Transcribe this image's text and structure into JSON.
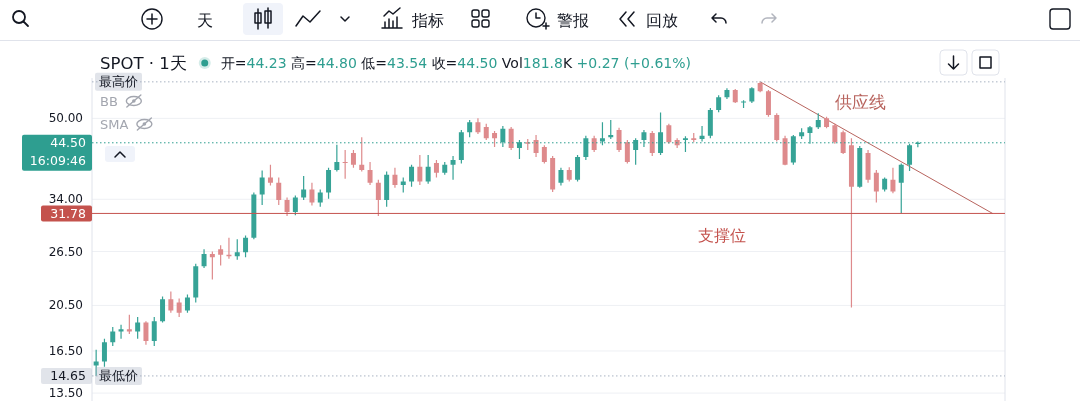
{
  "chart_data": {
    "type": "candlestick",
    "title": "SPOT · 1天",
    "subtitle": "开=44.23 高=44.80 低=43.54 收=44.50 Vol181.8K +0.27 (+0.61%)",
    "categories": [
      null,
      null,
      null,
      null,
      null,
      null,
      null,
      null,
      null,
      null,
      null,
      null,
      null,
      null,
      null,
      null,
      null,
      null,
      null,
      null,
      null,
      null,
      null,
      null,
      null,
      null,
      null,
      null,
      null,
      null,
      null,
      null,
      null,
      null,
      null,
      null,
      null,
      null,
      null,
      null,
      null,
      null,
      null,
      null,
      null,
      null,
      null,
      null,
      null,
      null,
      null,
      null,
      null,
      null,
      null,
      null,
      null,
      null,
      null,
      null,
      null,
      null,
      null,
      null,
      null,
      null,
      null,
      null,
      null,
      null,
      null,
      null,
      null,
      null,
      null,
      null,
      null,
      null,
      null,
      null,
      null,
      null,
      null,
      null,
      null,
      null,
      null,
      null,
      null,
      null,
      null,
      null,
      null,
      null,
      null,
      null,
      null,
      null,
      null,
      null,
      null,
      null,
      null,
      null,
      null,
      null,
      null,
      null,
      null,
      null
    ],
    "ohlc": [
      [
        15.4,
        16.6,
        14.65,
        15.7
      ],
      [
        15.7,
        17.5,
        15.3,
        17.2
      ],
      [
        17.2,
        18.5,
        16.9,
        18.1
      ],
      [
        18.1,
        18.7,
        17.5,
        18.3
      ],
      [
        18.3,
        19.6,
        17.9,
        18.1
      ],
      [
        18.1,
        19.4,
        17.5,
        18.9
      ],
      [
        18.9,
        19.0,
        17.0,
        17.3
      ],
      [
        17.3,
        19.4,
        16.9,
        19.0
      ],
      [
        19.0,
        21.4,
        18.9,
        21.1
      ],
      [
        21.1,
        21.9,
        19.8,
        20.0
      ],
      [
        20.8,
        21.2,
        19.4,
        19.8
      ],
      [
        20.0,
        21.6,
        19.8,
        21.3
      ],
      [
        21.3,
        25.0,
        20.8,
        24.7
      ],
      [
        24.7,
        26.8,
        24.5,
        26.2
      ],
      [
        26.2,
        26.5,
        23.2,
        25.8
      ],
      [
        26.8,
        27.3,
        24.8,
        26.1
      ],
      [
        26.1,
        28.3,
        25.6,
        25.9
      ],
      [
        25.9,
        28.1,
        25.5,
        26.4
      ],
      [
        26.4,
        28.6,
        25.8,
        28.3
      ],
      [
        28.3,
        35.1,
        28.1,
        34.8
      ],
      [
        34.8,
        39.0,
        33.1,
        37.7
      ],
      [
        37.7,
        40.1,
        36.3,
        36.8
      ],
      [
        36.8,
        37.7,
        33.1,
        33.9
      ],
      [
        33.9,
        34.3,
        31.4,
        32.0
      ],
      [
        32.0,
        34.6,
        31.5,
        34.3
      ],
      [
        34.3,
        38.0,
        33.9,
        35.6
      ],
      [
        35.6,
        36.8,
        33.0,
        33.5
      ],
      [
        33.5,
        35.6,
        32.8,
        35.1
      ],
      [
        35.1,
        39.5,
        34.1,
        39.1
      ],
      [
        39.1,
        44.1,
        38.8,
        40.6
      ],
      [
        40.6,
        43.0,
        37.5,
        40.4
      ],
      [
        42.4,
        43.0,
        39.5,
        40.1
      ],
      [
        40.1,
        45.7,
        38.8,
        39.1
      ],
      [
        39.1,
        40.6,
        36.4,
        36.8
      ],
      [
        36.8,
        37.3,
        31.4,
        33.9
      ],
      [
        33.9,
        38.8,
        32.8,
        38.2
      ],
      [
        38.2,
        39.5,
        35.9,
        36.4
      ],
      [
        36.4,
        37.7,
        35.1,
        37.0
      ],
      [
        37.0,
        40.1,
        36.1,
        39.7
      ],
      [
        39.7,
        42.0,
        36.4,
        37.0
      ],
      [
        37.0,
        42.0,
        36.6,
        39.7
      ],
      [
        40.4,
        41.0,
        37.7,
        38.6
      ],
      [
        38.6,
        40.6,
        38.2,
        40.1
      ],
      [
        40.1,
        41.8,
        37.3,
        41.0
      ],
      [
        41.0,
        47.3,
        40.3,
        46.8
      ],
      [
        46.8,
        49.6,
        45.7,
        49.1
      ],
      [
        49.1,
        50.0,
        46.4,
        46.8
      ],
      [
        48.0,
        48.7,
        45.1,
        45.5
      ],
      [
        46.6,
        47.1,
        43.6,
        45.5
      ],
      [
        44.6,
        48.2,
        43.6,
        47.6
      ],
      [
        47.6,
        48.0,
        43.0,
        43.4
      ],
      [
        43.4,
        45.1,
        41.2,
        44.6
      ],
      [
        44.6,
        45.3,
        43.0,
        44.3
      ],
      [
        45.1,
        46.2,
        41.6,
        42.4
      ],
      [
        43.6,
        44.0,
        40.3,
        40.6
      ],
      [
        41.4,
        41.8,
        35.2,
        35.6
      ],
      [
        36.8,
        39.5,
        36.3,
        39.1
      ],
      [
        39.1,
        39.6,
        37.0,
        37.3
      ],
      [
        37.3,
        42.0,
        37.0,
        41.6
      ],
      [
        41.6,
        46.0,
        41.0,
        45.5
      ],
      [
        45.5,
        46.0,
        42.6,
        43.0
      ],
      [
        44.8,
        49.1,
        44.0,
        45.5
      ],
      [
        45.7,
        49.6,
        45.3,
        46.2
      ],
      [
        47.3,
        47.8,
        42.6,
        43.0
      ],
      [
        44.6,
        45.1,
        40.3,
        40.6
      ],
      [
        43.0,
        45.5,
        40.1,
        45.1
      ],
      [
        45.1,
        47.3,
        43.6,
        46.8
      ],
      [
        46.6,
        47.1,
        41.8,
        42.4
      ],
      [
        42.4,
        51.4,
        42.0,
        46.8
      ],
      [
        48.4,
        48.7,
        44.3,
        44.6
      ],
      [
        45.1,
        45.5,
        43.4,
        44.0
      ],
      [
        45.1,
        45.9,
        42.6,
        45.5
      ],
      [
        45.5,
        46.6,
        44.6,
        45.1
      ],
      [
        45.3,
        48.2,
        44.8,
        46.0
      ],
      [
        46.0,
        52.5,
        45.5,
        52.0
      ],
      [
        52.0,
        55.8,
        51.5,
        55.3
      ],
      [
        55.3,
        57.7,
        54.8,
        57.2
      ],
      [
        57.2,
        57.5,
        53.8,
        54.0
      ],
      [
        54.0,
        54.5,
        52.5,
        54.2
      ],
      [
        54.2,
        58.0,
        53.8,
        57.7
      ],
      [
        59.2,
        59.5,
        56.6,
        56.9
      ],
      [
        56.9,
        57.2,
        50.4,
        50.8
      ],
      [
        50.8,
        51.2,
        44.8,
        45.1
      ],
      [
        45.5,
        46.0,
        40.0,
        40.1
      ],
      [
        40.5,
        46.2,
        40.1,
        45.9
      ],
      [
        45.9,
        47.7,
        45.3,
        46.8
      ],
      [
        46.6,
        48.2,
        44.3,
        47.9
      ],
      [
        47.9,
        51.2,
        47.5,
        49.6
      ],
      [
        50.0,
        50.4,
        47.7,
        48.0
      ],
      [
        48.4,
        48.8,
        44.3,
        44.6
      ],
      [
        46.8,
        47.2,
        42.2,
        42.4
      ],
      [
        44.0,
        45.5,
        20.3,
        36.1
      ],
      [
        36.1,
        43.8,
        35.9,
        43.4
      ],
      [
        42.4,
        43.0,
        36.8,
        37.3
      ],
      [
        38.6,
        39.1,
        33.5,
        35.3
      ],
      [
        35.6,
        37.7,
        35.3,
        37.5
      ],
      [
        37.3,
        39.5,
        35.0,
        35.3
      ],
      [
        36.8,
        40.3,
        31.8,
        40.1
      ],
      [
        40.1,
        44.3,
        38.9,
        44.0
      ],
      [
        44.23,
        44.8,
        43.54,
        44.5
      ],
      null,
      null,
      null,
      null,
      null,
      null,
      null,
      null,
      null,
      null
    ],
    "colors": [
      "#36a396",
      "#36a396",
      "#36a396",
      "#36a396",
      "#de8a8c",
      "#36a396",
      "#de8a8c",
      "#36a396",
      "#36a396",
      "#de8a8c",
      "#de8a8c",
      "#36a396",
      "#36a396",
      "#36a396",
      "#de8a8c",
      "#de8a8c",
      "#de8a8c",
      "#36a396",
      "#36a396",
      "#36a396",
      "#36a396",
      "#de8a8c",
      "#de8a8c",
      "#de8a8c",
      "#36a396",
      "#36a396",
      "#de8a8c",
      "#36a396",
      "#36a396",
      "#36a396",
      "#de8a8c",
      "#de8a8c",
      "#de8a8c",
      "#de8a8c",
      "#de8a8c",
      "#36a396",
      "#de8a8c",
      "#36a396",
      "#36a396",
      "#de8a8c",
      "#36a396",
      "#de8a8c",
      "#36a396",
      "#36a396",
      "#36a396",
      "#36a396",
      "#de8a8c",
      "#de8a8c",
      "#de8a8c",
      "#36a396",
      "#de8a8c",
      "#36a396",
      "#de8a8c",
      "#de8a8c",
      "#de8a8c",
      "#de8a8c",
      "#36a396",
      "#de8a8c",
      "#36a396",
      "#36a396",
      "#de8a8c",
      "#36a396",
      "#36a396",
      "#de8a8c",
      "#de8a8c",
      "#36a396",
      "#36a396",
      "#de8a8c",
      "#36a396",
      "#de8a8c",
      "#de8a8c",
      "#36a396",
      "#de8a8c",
      "#36a396",
      "#36a396",
      "#36a396",
      "#36a396",
      "#de8a8c",
      "#36a396",
      "#36a396",
      "#de8a8c",
      "#de8a8c",
      "#de8a8c",
      "#de8a8c",
      "#36a396",
      "#36a396",
      "#36a396",
      "#36a396",
      "#de8a8c",
      "#de8a8c",
      "#de8a8c",
      "#de8a8c",
      "#36a396",
      "#de8a8c",
      "#de8a8c",
      "#36a396",
      "#de8a8c",
      "#36a396",
      "#36a396",
      "#36a396",
      null,
      null,
      null,
      null,
      null,
      null,
      null,
      null,
      null,
      null
    ],
    "series": [
      {
        "type": "line",
        "name": "供应线",
        "color": "#b8645e",
        "values": [
          null,
          null,
          null,
          null,
          null,
          null,
          null,
          null,
          null,
          null,
          null,
          null,
          null,
          null,
          null,
          null,
          null,
          null,
          null,
          null,
          null,
          null,
          null,
          null,
          null,
          null,
          null,
          null,
          null,
          null,
          null,
          null,
          null,
          null,
          null,
          null,
          null,
          null,
          null,
          null,
          null,
          null,
          null,
          null,
          null,
          null,
          null,
          null,
          null,
          null,
          null,
          null,
          null,
          null,
          null,
          null,
          null,
          null,
          null,
          null,
          null,
          null,
          null,
          null,
          null,
          null,
          null,
          null,
          null,
          null,
          null,
          null,
          null,
          null,
          null,
          null,
          null,
          null,
          null,
          null,
          59.5,
          null,
          null,
          null,
          null,
          null,
          null,
          null,
          null,
          null,
          null,
          null,
          null,
          null,
          null,
          null,
          null,
          null,
          null,
          null,
          null,
          null,
          null,
          null,
          null,
          null,
          null,
          null,
          31.78,
          null
        ]
      }
    ],
    "log": true,
    "ylim": [
      13.0,
      60.6
    ],
    "yticks": [
      {
        "value": 13.5,
        "label": "13.50"
      },
      {
        "value": 14.65,
        "label": "14.65"
      },
      {
        "value": 16.5,
        "label": "16.50"
      },
      {
        "value": 20.5,
        "label": "20.50"
      },
      {
        "value": 26.5,
        "label": "26.50"
      },
      {
        "value": 31.78,
        "label": "31.78"
      },
      {
        "value": 34,
        "label": "34.00"
      },
      {
        "value": 44.5,
        "label": "44.50"
      },
      {
        "value": 50,
        "label": "50.00"
      }
    ],
    "tick_labels": "y",
    "grid": "y",
    "ref_lines": [
      {
        "axis": "y",
        "value": 59.5,
        "label": "最高价",
        "line_style": "dotted",
        "color": "#a9b3c2"
      },
      {
        "axis": "y",
        "value": 44.5,
        "line_style": "dotted",
        "color": "#2e9e90"
      },
      {
        "axis": "y",
        "value": 31.78,
        "label": "支撑位",
        "color": "#c4524d"
      },
      {
        "axis": "y",
        "value": 14.65,
        "label": "最低价",
        "line_style": "dotted",
        "color": "#a9b3c2"
      }
    ],
    "annotations": [
      "16:09:46",
      "BB",
      "SMA",
      "天",
      "指标",
      "警报",
      "回放"
    ]
  }
}
